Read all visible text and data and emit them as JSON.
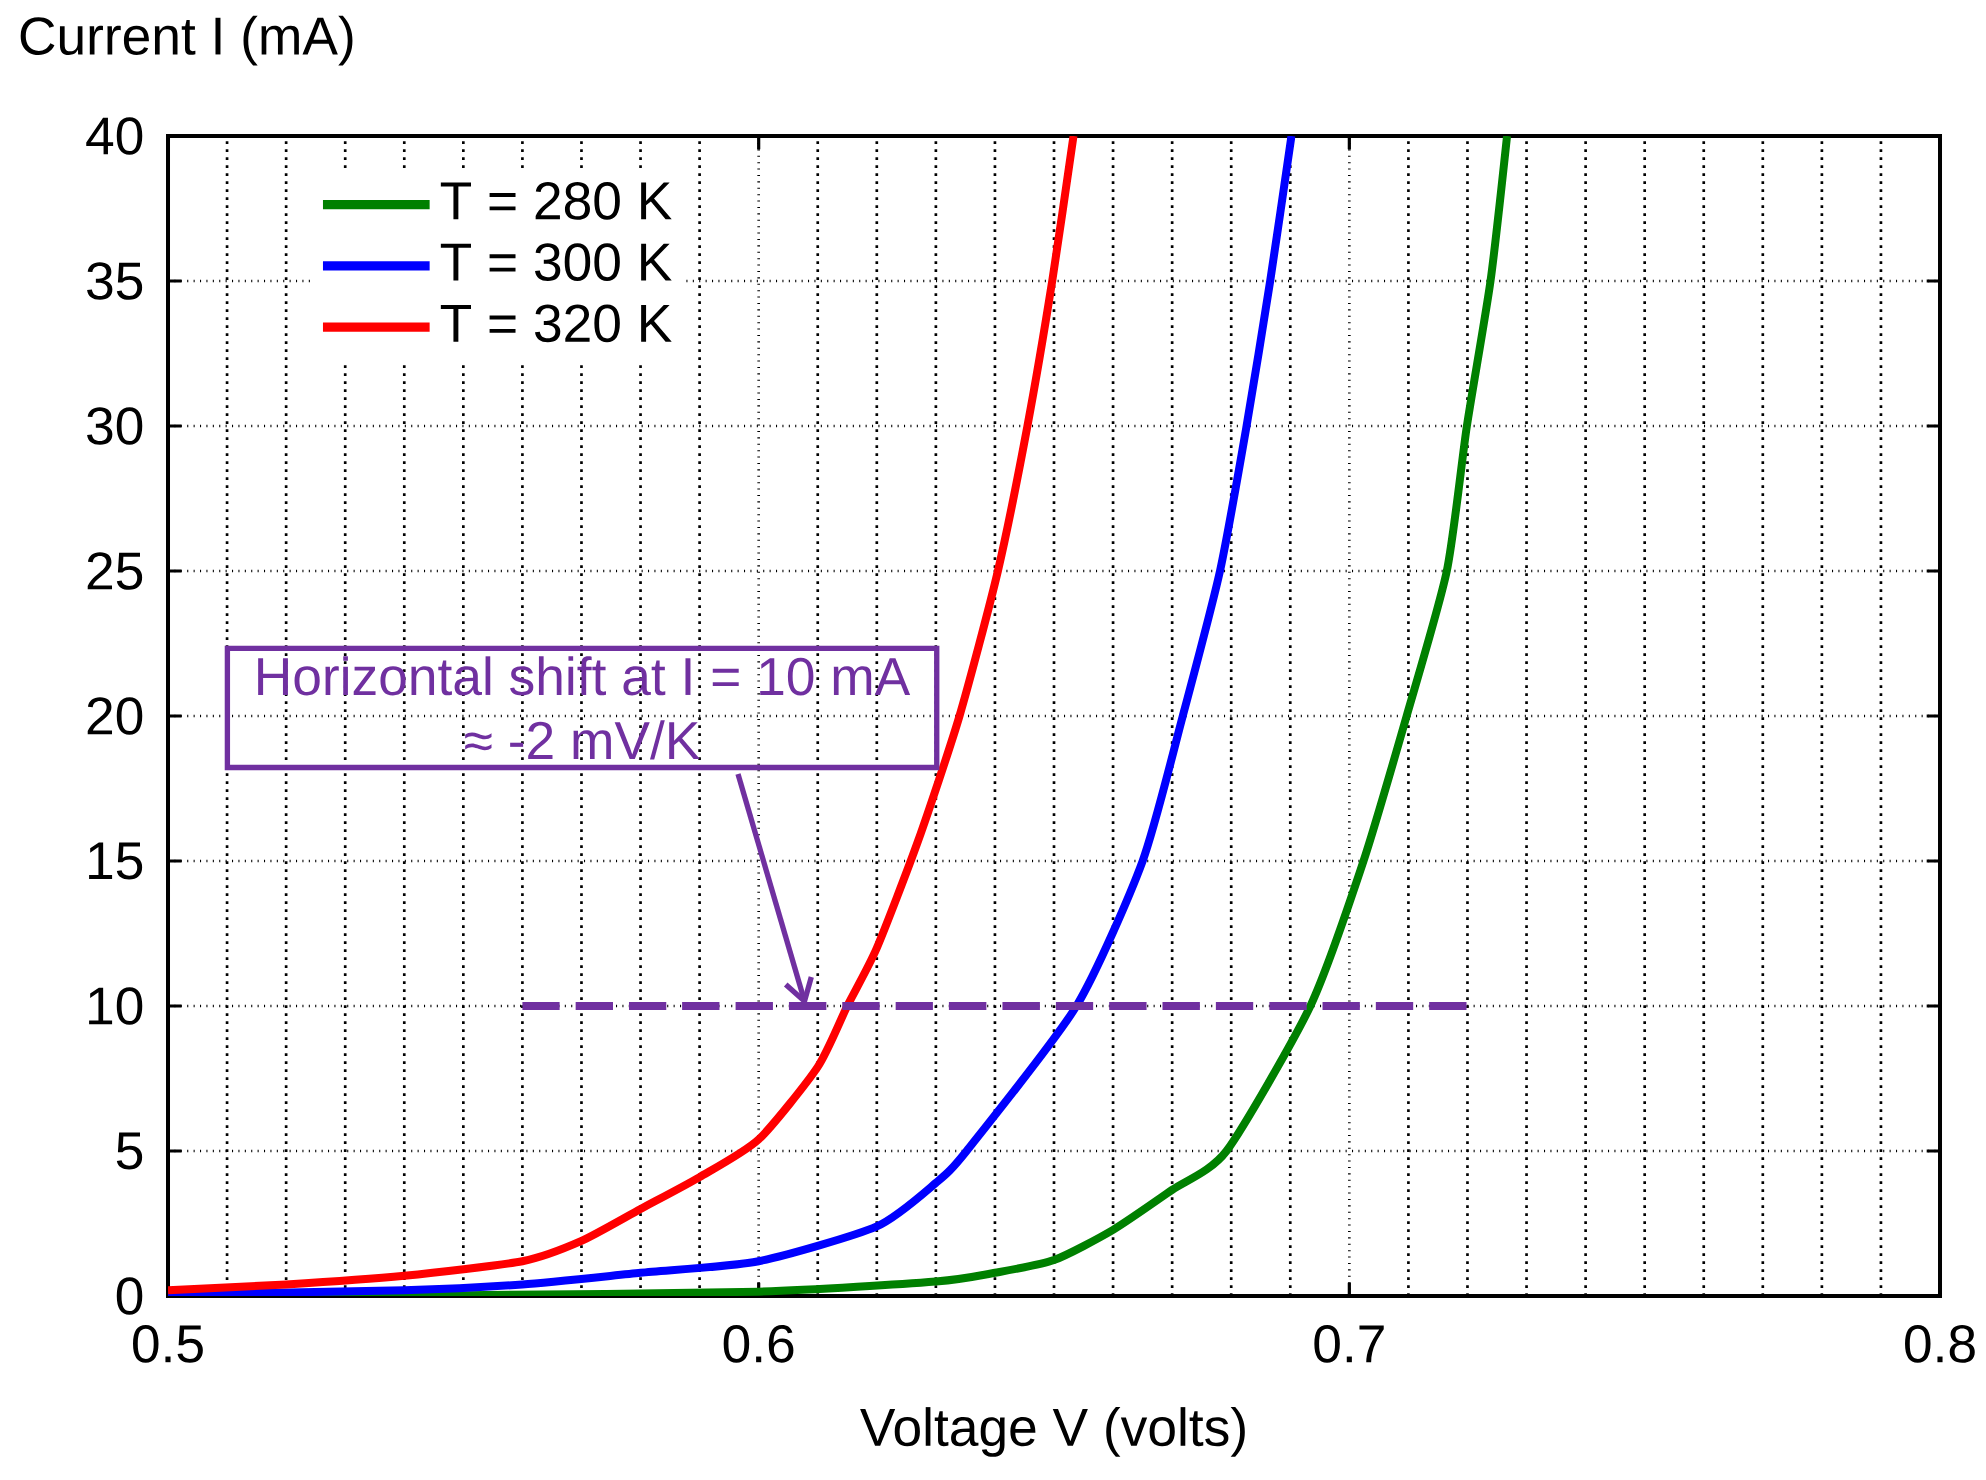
{
  "chart_data": {
    "type": "line",
    "xlabel": "Voltage V (volts)",
    "ylabel": "Current I (mA)",
    "xlim": [
      0.5,
      0.8
    ],
    "xticks": [
      0.5,
      0.6,
      0.7,
      0.8
    ],
    "ylim": [
      0,
      40
    ],
    "yticks": [
      0,
      5,
      10,
      15,
      20,
      25,
      30,
      35,
      40
    ],
    "grid": true,
    "legend": "top left",
    "annotations": [
      "Horizontal shift at I = 10 mA",
      {
        "text": "≈ -2 mV/K",
        "x": 0.608,
        "y": 10
      }
    ],
    "series": [
      {
        "name": "T = 280 K",
        "color": "#008000",
        "x": [
          0.5,
          0.55,
          0.6,
          0.63,
          0.64,
          0.65,
          0.66,
          0.67,
          0.6792,
          0.6934,
          0.7024,
          0.7097,
          0.7165,
          0.7199,
          0.7239,
          0.7267
        ],
        "values": [
          0.01,
          0.03,
          0.15,
          0.5,
          0.8,
          1.24,
          2.28,
          3.66,
          5,
          10,
          15,
          20,
          25,
          30,
          35,
          40
        ]
      },
      {
        "name": "T = 300 K",
        "color": "#0000ff",
        "x": [
          0.5,
          0.54,
          0.56,
          0.58,
          0.6,
          0.62,
          0.63,
          0.6352,
          0.6538,
          0.665,
          0.6718,
          0.6781,
          0.6826,
          0.6866,
          0.6902
        ],
        "values": [
          0.05,
          0.2,
          0.4,
          0.8,
          1.2,
          2.4,
          3.9,
          5,
          10,
          15,
          20,
          25,
          30,
          35,
          40
        ]
      },
      {
        "name": "T = 320 K",
        "color": "#ff0000",
        "x": [
          0.5,
          0.52,
          0.54,
          0.56,
          0.57,
          0.58,
          0.59,
          0.6,
          0.61,
          0.615,
          0.62,
          0.627,
          0.634,
          0.6405,
          0.6455,
          0.6497,
          0.6533
        ],
        "values": [
          0.2,
          0.4,
          0.7,
          1.2,
          1.9,
          3.0,
          4.1,
          5.4,
          7.9,
          10,
          12,
          15.7,
          20,
          25,
          30,
          35,
          40
        ]
      },
      {
        "color": "#7030a0",
        "line_style": "dashed",
        "x": [
          0.56,
          0.72
        ],
        "values": [
          10,
          10
        ]
      }
    ]
  }
}
